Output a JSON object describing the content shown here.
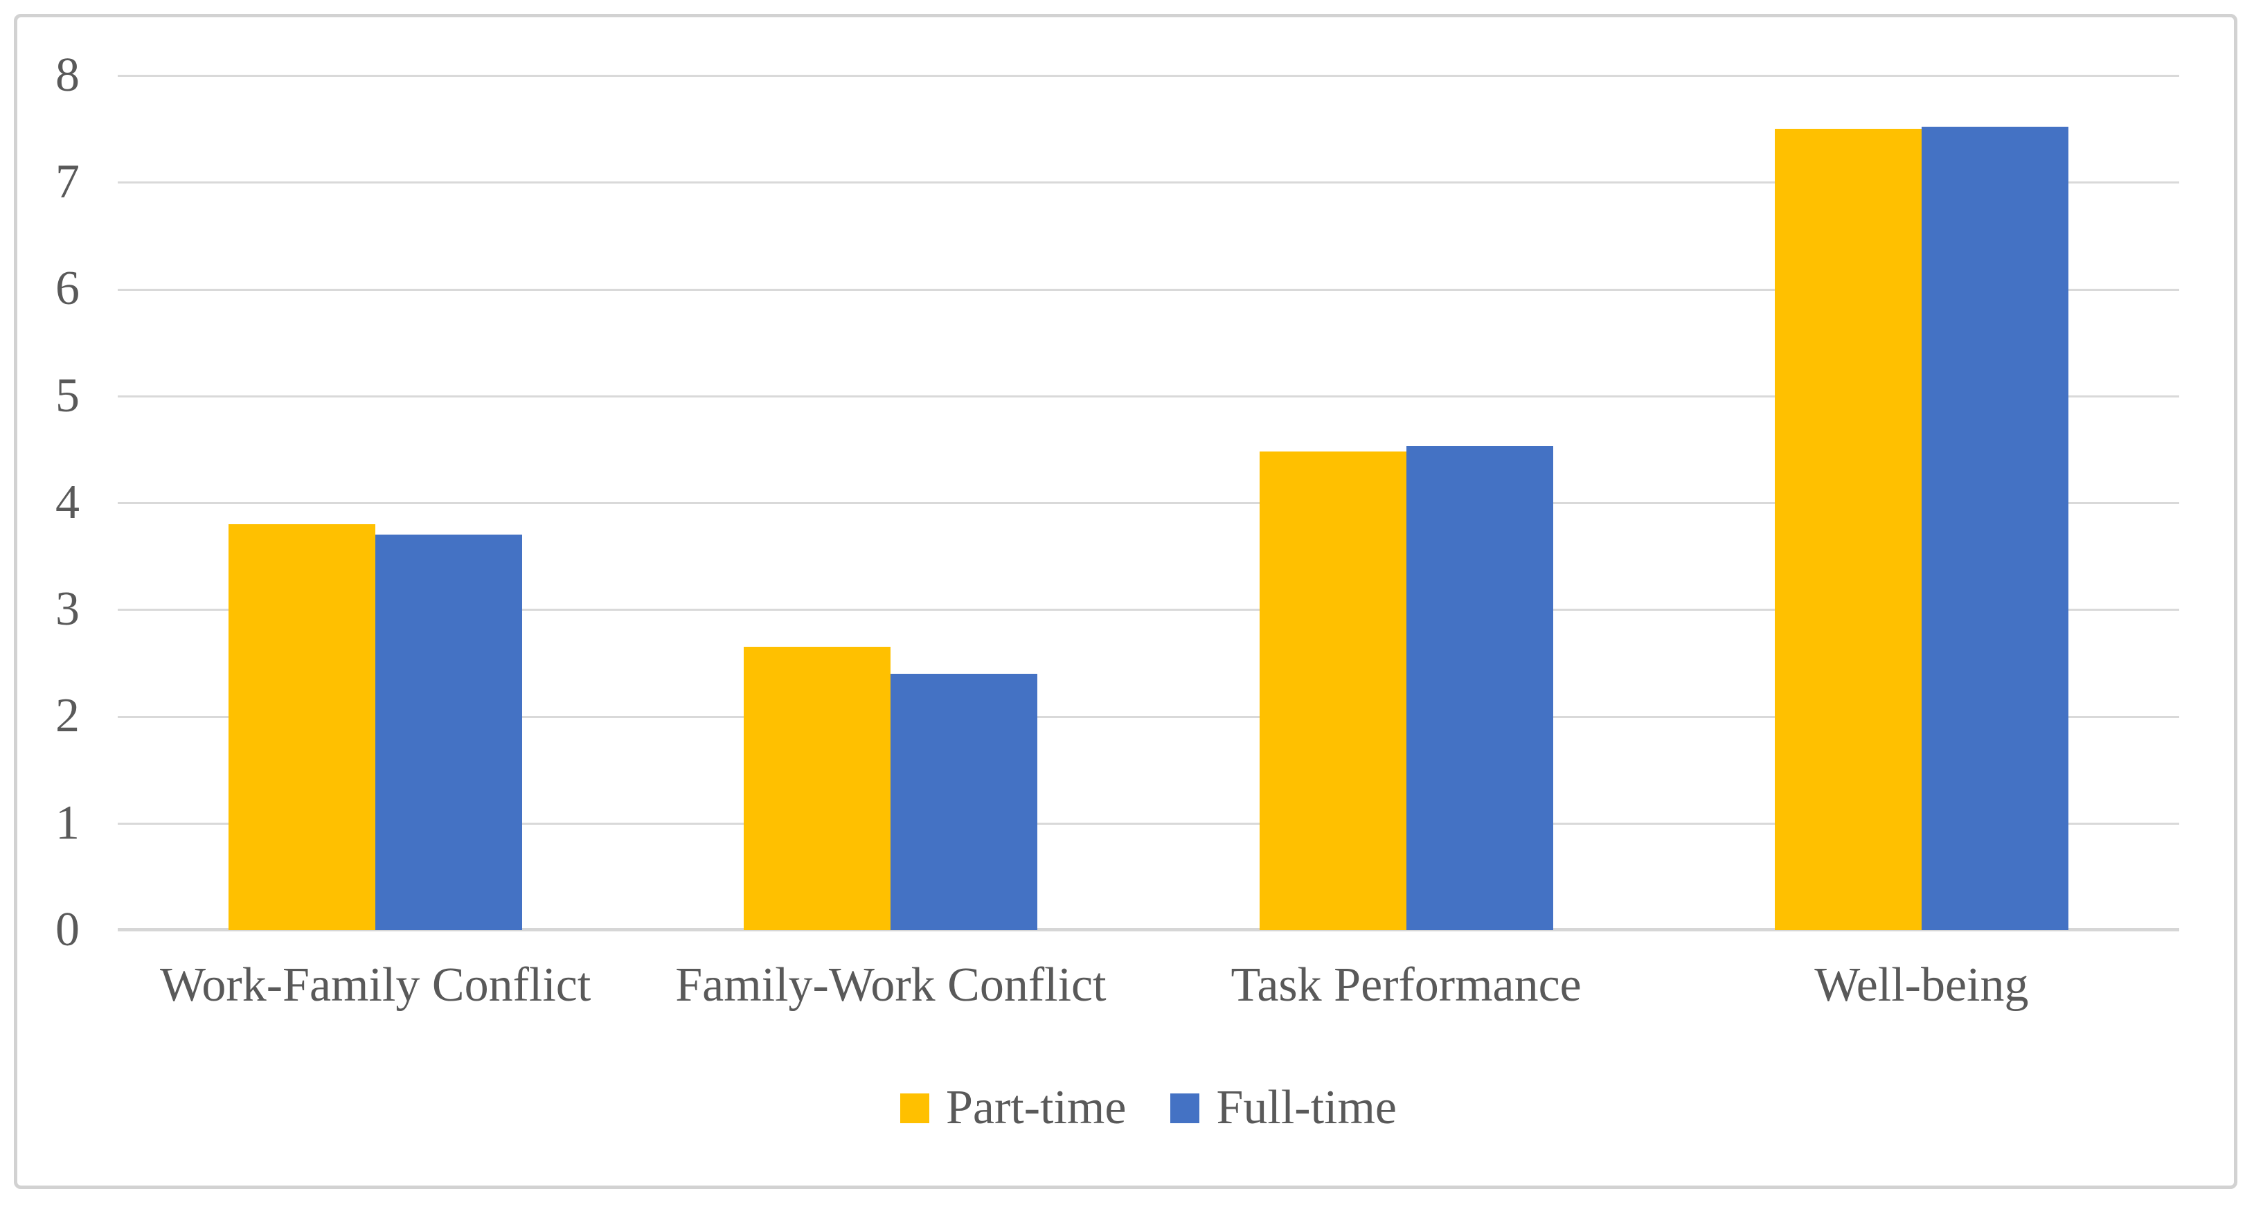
{
  "figure": {
    "kind": "grouped-column-chart",
    "background": "#ffffff"
  },
  "chart_data": {
    "type": "bar",
    "title": "",
    "xlabel": "",
    "ylabel": "",
    "categories": [
      "Work-Family Conflict",
      "Family-Work Conflict",
      "Task Performance",
      "Well-being"
    ],
    "series": [
      {
        "name": "Part-time",
        "color": "#FFC000",
        "values": [
          3.8,
          2.65,
          4.48,
          7.5
        ]
      },
      {
        "name": "Full-time",
        "color": "#4472C4",
        "values": [
          3.7,
          2.4,
          4.53,
          7.52
        ]
      }
    ],
    "ylim": [
      0,
      8
    ],
    "ytick_step": 1,
    "yticks": [
      "0",
      "1",
      "2",
      "3",
      "4",
      "5",
      "6",
      "7",
      "8"
    ],
    "grid": "horizontal",
    "legend_position": "bottom"
  },
  "colors": {
    "text": "#595959",
    "gridline": "#d9d9d9",
    "axis_line": "#d6d6d6",
    "frame_border": "#d2d2d2"
  }
}
